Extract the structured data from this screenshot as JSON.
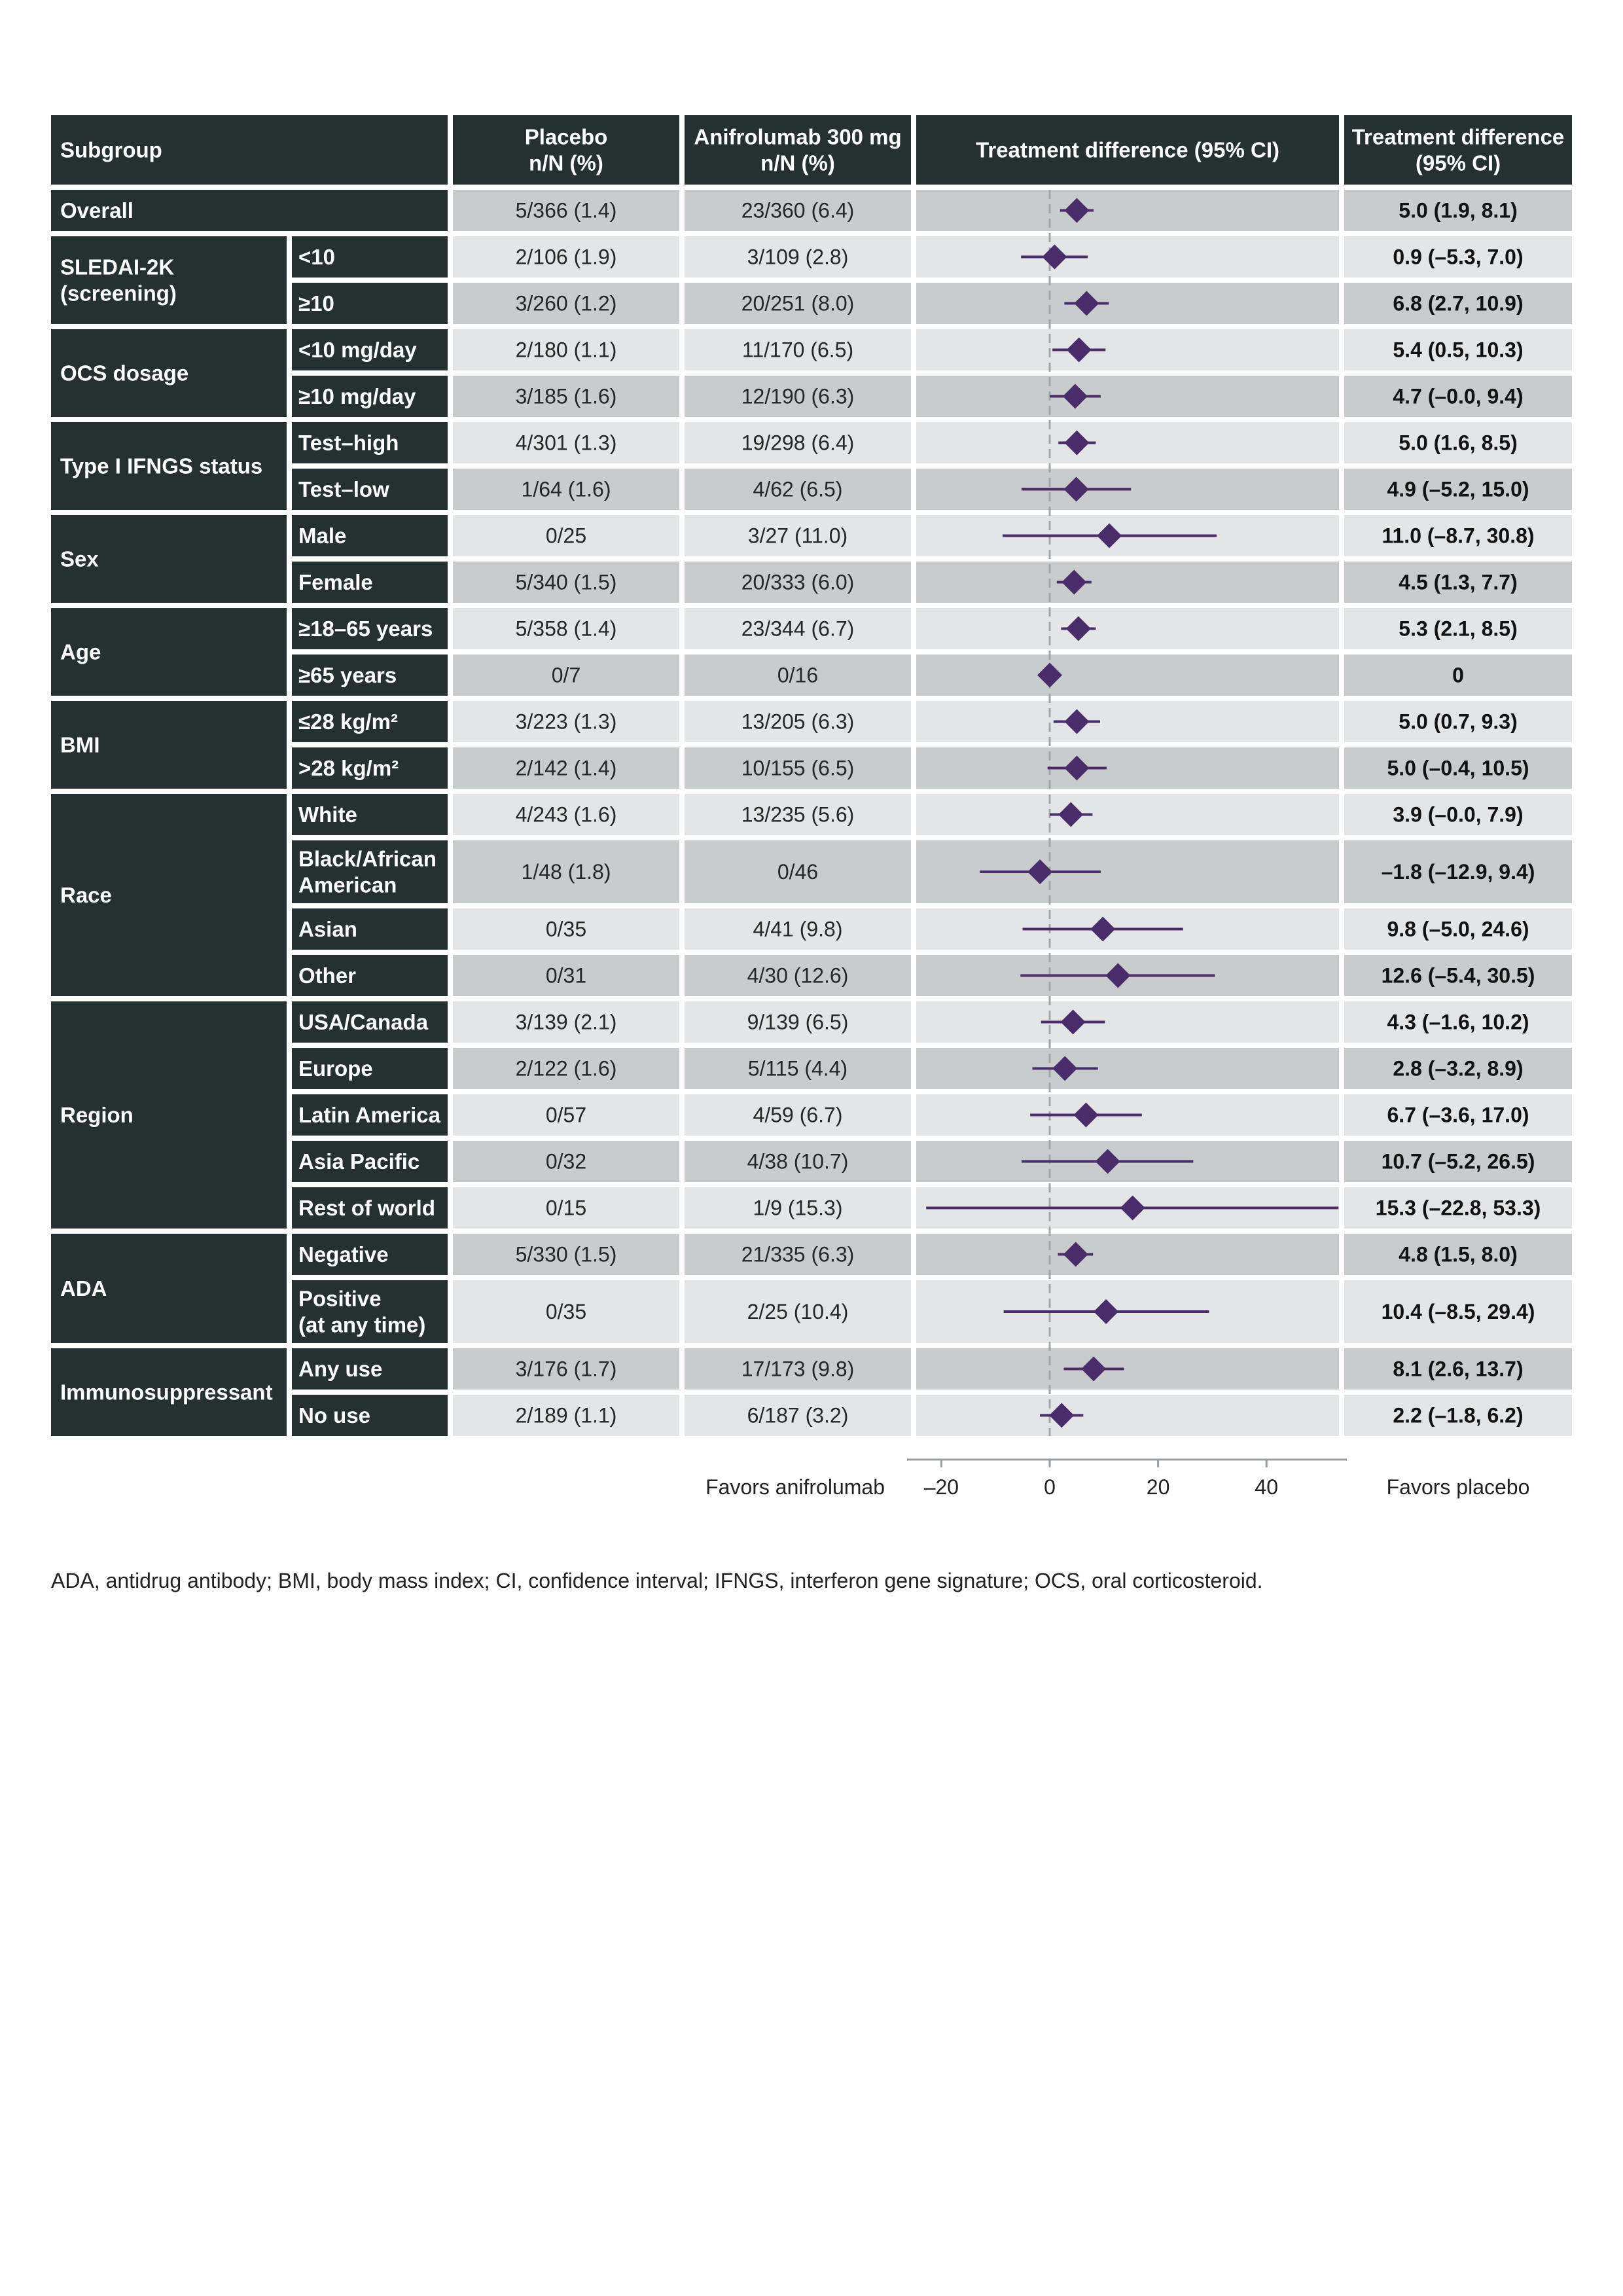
{
  "header": {
    "subgroup": "Subgroup",
    "placebo": [
      "Placebo",
      "n/N (%)"
    ],
    "anifrolumab": [
      "Anifrolumab 300 mg",
      "n/N (%)"
    ],
    "forest": "Treatment difference (95% CI)",
    "difference": [
      "Treatment difference",
      "(95% CI)"
    ]
  },
  "colors": {
    "dark": "#253130",
    "band_dark": "#c9cccd",
    "band_light": "#e4e5e6",
    "marker": "#4b2c6a",
    "refline": "#a3a6a9"
  },
  "groups": [
    {
      "label": [
        "Overall"
      ],
      "rows": [
        0
      ]
    },
    {
      "label": [
        "SLEDAI-2K",
        "(screening)"
      ],
      "rows": [
        1,
        2
      ]
    },
    {
      "label": [
        "OCS dosage"
      ],
      "rows": [
        3,
        4
      ]
    },
    {
      "label": [
        "Type I IFNGS status"
      ],
      "rows": [
        5,
        6
      ]
    },
    {
      "label": [
        "Sex"
      ],
      "rows": [
        7,
        8
      ]
    },
    {
      "label": [
        "Age"
      ],
      "rows": [
        9,
        10
      ]
    },
    {
      "label": [
        "BMI"
      ],
      "rows": [
        11,
        12
      ]
    },
    {
      "label": [
        "Race"
      ],
      "rows": [
        13,
        14,
        15,
        16
      ]
    },
    {
      "label": [
        "Region"
      ],
      "rows": [
        17,
        18,
        19,
        20,
        21
      ]
    },
    {
      "label": [
        "ADA"
      ],
      "rows": [
        22,
        23
      ]
    },
    {
      "label": [
        "Immunosuppressant"
      ],
      "rows": [
        24,
        25
      ]
    }
  ],
  "chart_data": {
    "type": "forest",
    "title": "Treatment difference (95% CI)",
    "xlim": [
      -24,
      56
    ],
    "xticks": [
      -20,
      0,
      20,
      40
    ],
    "xtick_labels": [
      "–20",
      "0",
      "20",
      "40"
    ],
    "reference_line": 0,
    "left_label": "Favors anifrolumab",
    "right_label": "Favors placebo",
    "rows": [
      {
        "sub": [],
        "placebo": "5/366 (1.4)",
        "anifrolumab": "23/360 (6.4)",
        "estimate": 5.0,
        "lower": 1.9,
        "upper": 8.1,
        "text": "5.0 (1.9, 8.1)"
      },
      {
        "sub": [
          "<10"
        ],
        "placebo": "2/106 (1.9)",
        "anifrolumab": "3/109 (2.8)",
        "estimate": 0.9,
        "lower": -5.3,
        "upper": 7.0,
        "text": "0.9 (–5.3, 7.0)"
      },
      {
        "sub": [
          "≥10"
        ],
        "placebo": "3/260 (1.2)",
        "anifrolumab": "20/251 (8.0)",
        "estimate": 6.8,
        "lower": 2.7,
        "upper": 10.9,
        "text": "6.8 (2.7, 10.9)"
      },
      {
        "sub": [
          "<10 mg/day"
        ],
        "placebo": "2/180 (1.1)",
        "anifrolumab": "11/170 (6.5)",
        "estimate": 5.4,
        "lower": 0.5,
        "upper": 10.3,
        "text": "5.4 (0.5, 10.3)"
      },
      {
        "sub": [
          "≥10 mg/day"
        ],
        "placebo": "3/185 (1.6)",
        "anifrolumab": "12/190 (6.3)",
        "estimate": 4.7,
        "lower": -0.0,
        "upper": 9.4,
        "text": "4.7 (–0.0, 9.4)"
      },
      {
        "sub": [
          "Test–high"
        ],
        "placebo": "4/301 (1.3)",
        "anifrolumab": "19/298 (6.4)",
        "estimate": 5.0,
        "lower": 1.6,
        "upper": 8.5,
        "text": "5.0 (1.6, 8.5)"
      },
      {
        "sub": [
          "Test–low"
        ],
        "placebo": "1/64 (1.6)",
        "anifrolumab": "4/62 (6.5)",
        "estimate": 4.9,
        "lower": -5.2,
        "upper": 15.0,
        "text": "4.9 (–5.2, 15.0)"
      },
      {
        "sub": [
          "Male"
        ],
        "placebo": "0/25",
        "anifrolumab": "3/27 (11.0)",
        "estimate": 11.0,
        "lower": -8.7,
        "upper": 30.8,
        "text": "11.0 (–8.7, 30.8)"
      },
      {
        "sub": [
          "Female"
        ],
        "placebo": "5/340 (1.5)",
        "anifrolumab": "20/333 (6.0)",
        "estimate": 4.5,
        "lower": 1.3,
        "upper": 7.7,
        "text": "4.5 (1.3, 7.7)"
      },
      {
        "sub": [
          "≥18–65 years"
        ],
        "placebo": "5/358 (1.4)",
        "anifrolumab": "23/344 (6.7)",
        "estimate": 5.3,
        "lower": 2.1,
        "upper": 8.5,
        "text": "5.3 (2.1, 8.5)"
      },
      {
        "sub": [
          "≥65 years"
        ],
        "placebo": "0/7",
        "anifrolumab": "0/16",
        "estimate": 0,
        "lower": 0,
        "upper": 0,
        "text": "0"
      },
      {
        "sub": [
          "≤28 kg/m²"
        ],
        "placebo": "3/223 (1.3)",
        "anifrolumab": "13/205 (6.3)",
        "estimate": 5.0,
        "lower": 0.7,
        "upper": 9.3,
        "text": "5.0 (0.7, 9.3)"
      },
      {
        "sub": [
          ">28 kg/m²"
        ],
        "placebo": "2/142 (1.4)",
        "anifrolumab": "10/155 (6.5)",
        "estimate": 5.0,
        "lower": -0.4,
        "upper": 10.5,
        "text": "5.0 (–0.4, 10.5)"
      },
      {
        "sub": [
          "White"
        ],
        "placebo": "4/243 (1.6)",
        "anifrolumab": "13/235 (5.6)",
        "estimate": 3.9,
        "lower": -0.0,
        "upper": 7.9,
        "text": "3.9 (–0.0, 7.9)"
      },
      {
        "sub": [
          "Black/African",
          "American"
        ],
        "placebo": "1/48 (1.8)",
        "anifrolumab": "0/46",
        "estimate": -1.8,
        "lower": -12.9,
        "upper": 9.4,
        "text": "–1.8 (–12.9, 9.4)"
      },
      {
        "sub": [
          "Asian"
        ],
        "placebo": "0/35",
        "anifrolumab": "4/41 (9.8)",
        "estimate": 9.8,
        "lower": -5.0,
        "upper": 24.6,
        "text": "9.8 (–5.0, 24.6)"
      },
      {
        "sub": [
          "Other"
        ],
        "placebo": "0/31",
        "anifrolumab": "4/30 (12.6)",
        "estimate": 12.6,
        "lower": -5.4,
        "upper": 30.5,
        "text": "12.6 (–5.4, 30.5)"
      },
      {
        "sub": [
          "USA/Canada"
        ],
        "placebo": "3/139 (2.1)",
        "anifrolumab": "9/139 (6.5)",
        "estimate": 4.3,
        "lower": -1.6,
        "upper": 10.2,
        "text": "4.3 (–1.6, 10.2)"
      },
      {
        "sub": [
          "Europe"
        ],
        "placebo": "2/122 (1.6)",
        "anifrolumab": "5/115 (4.4)",
        "estimate": 2.8,
        "lower": -3.2,
        "upper": 8.9,
        "text": "2.8 (–3.2, 8.9)"
      },
      {
        "sub": [
          "Latin America"
        ],
        "placebo": "0/57",
        "anifrolumab": "4/59 (6.7)",
        "estimate": 6.7,
        "lower": -3.6,
        "upper": 17.0,
        "text": "6.7 (–3.6, 17.0)"
      },
      {
        "sub": [
          "Asia Pacific"
        ],
        "placebo": "0/32",
        "anifrolumab": "4/38 (10.7)",
        "estimate": 10.7,
        "lower": -5.2,
        "upper": 26.5,
        "text": "10.7 (–5.2, 26.5)"
      },
      {
        "sub": [
          "Rest of world"
        ],
        "placebo": "0/15",
        "anifrolumab": "1/9 (15.3)",
        "estimate": 15.3,
        "lower": -22.8,
        "upper": 53.3,
        "text": "15.3 (–22.8, 53.3)"
      },
      {
        "sub": [
          "Negative"
        ],
        "placebo": "5/330 (1.5)",
        "anifrolumab": "21/335 (6.3)",
        "estimate": 4.8,
        "lower": 1.5,
        "upper": 8.0,
        "text": "4.8 (1.5, 8.0)"
      },
      {
        "sub": [
          "Positive",
          "(at any time)"
        ],
        "placebo": "0/35",
        "anifrolumab": "2/25 (10.4)",
        "estimate": 10.4,
        "lower": -8.5,
        "upper": 29.4,
        "text": "10.4 (–8.5, 29.4)"
      },
      {
        "sub": [
          "Any use"
        ],
        "placebo": "3/176 (1.7)",
        "anifrolumab": "17/173 (9.8)",
        "estimate": 8.1,
        "lower": 2.6,
        "upper": 13.7,
        "text": "8.1 (2.6, 13.7)"
      },
      {
        "sub": [
          "No use"
        ],
        "placebo": "2/189 (1.1)",
        "anifrolumab": "6/187 (3.2)",
        "estimate": 2.2,
        "lower": -1.8,
        "upper": 6.2,
        "text": "2.2 (–1.8, 6.2)"
      }
    ]
  },
  "footnote": "ADA, antidrug antibody; BMI, body mass index; CI, confidence interval; IFNGS, interferon gene signature; OCS, oral corticosteroid."
}
